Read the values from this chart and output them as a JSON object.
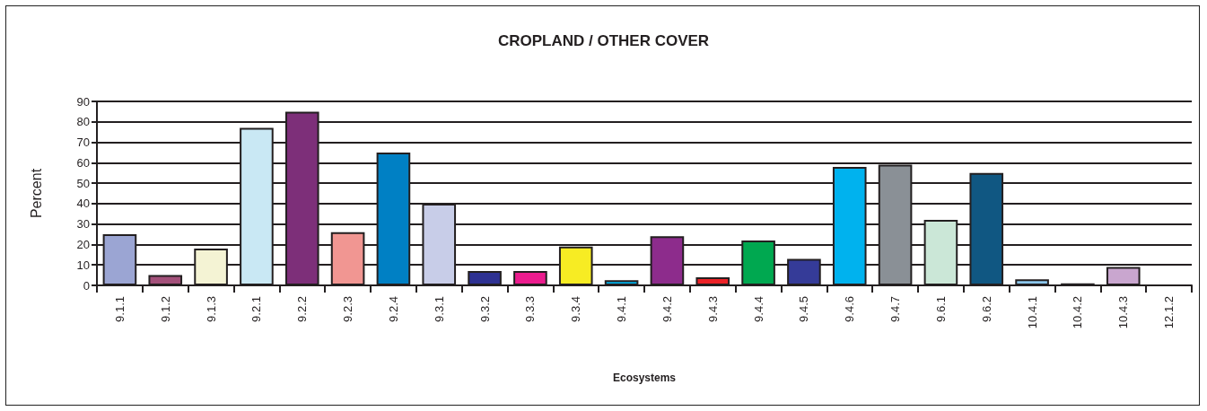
{
  "chart_data": {
    "type": "bar",
    "title": "CROPLAND / OTHER COVER",
    "xlabel": "Ecosystems",
    "ylabel": "Percent",
    "categories": [
      "9.1.1",
      "9.1.2",
      "9.1.3",
      "9.2.1",
      "9.2.2",
      "9.2.3",
      "9.2.4",
      "9.3.1",
      "9.3.2",
      "9.3.3",
      "9.3.4",
      "9.4.1",
      "9.4.2",
      "9.4.3",
      "9.4.4",
      "9.4.5",
      "9.4.6",
      "9.4.7",
      "9.6.1",
      "9.6.2",
      "10.4.1",
      "10.4.2",
      "10.4.3",
      "12.1.2"
    ],
    "values": [
      25,
      5,
      18,
      77,
      85,
      26,
      65,
      40,
      7,
      7,
      19,
      2.5,
      24,
      4,
      22,
      13,
      58,
      59,
      32,
      55,
      3,
      1,
      9,
      0
    ],
    "colors": [
      "#9ba5d3",
      "#a3507a",
      "#f4f3d4",
      "#c9e8f4",
      "#7d2f79",
      "#f19692",
      "#0080c4",
      "#c8cde8",
      "#2e3192",
      "#eb1c8e",
      "#f7ec23",
      "#00b0e8",
      "#8d2c8c",
      "#ec2227",
      "#00a850",
      "#353b98",
      "#00b2ee",
      "#8a9096",
      "#cbe7d7",
      "#105782",
      "#8cc7ec",
      "#2a2a5a",
      "#c9a6cf",
      "#231f20"
    ],
    "ylim": [
      0,
      90
    ],
    "yticks": [
      0,
      10,
      20,
      30,
      40,
      50,
      60,
      70,
      80,
      90
    ],
    "grid": "y"
  }
}
